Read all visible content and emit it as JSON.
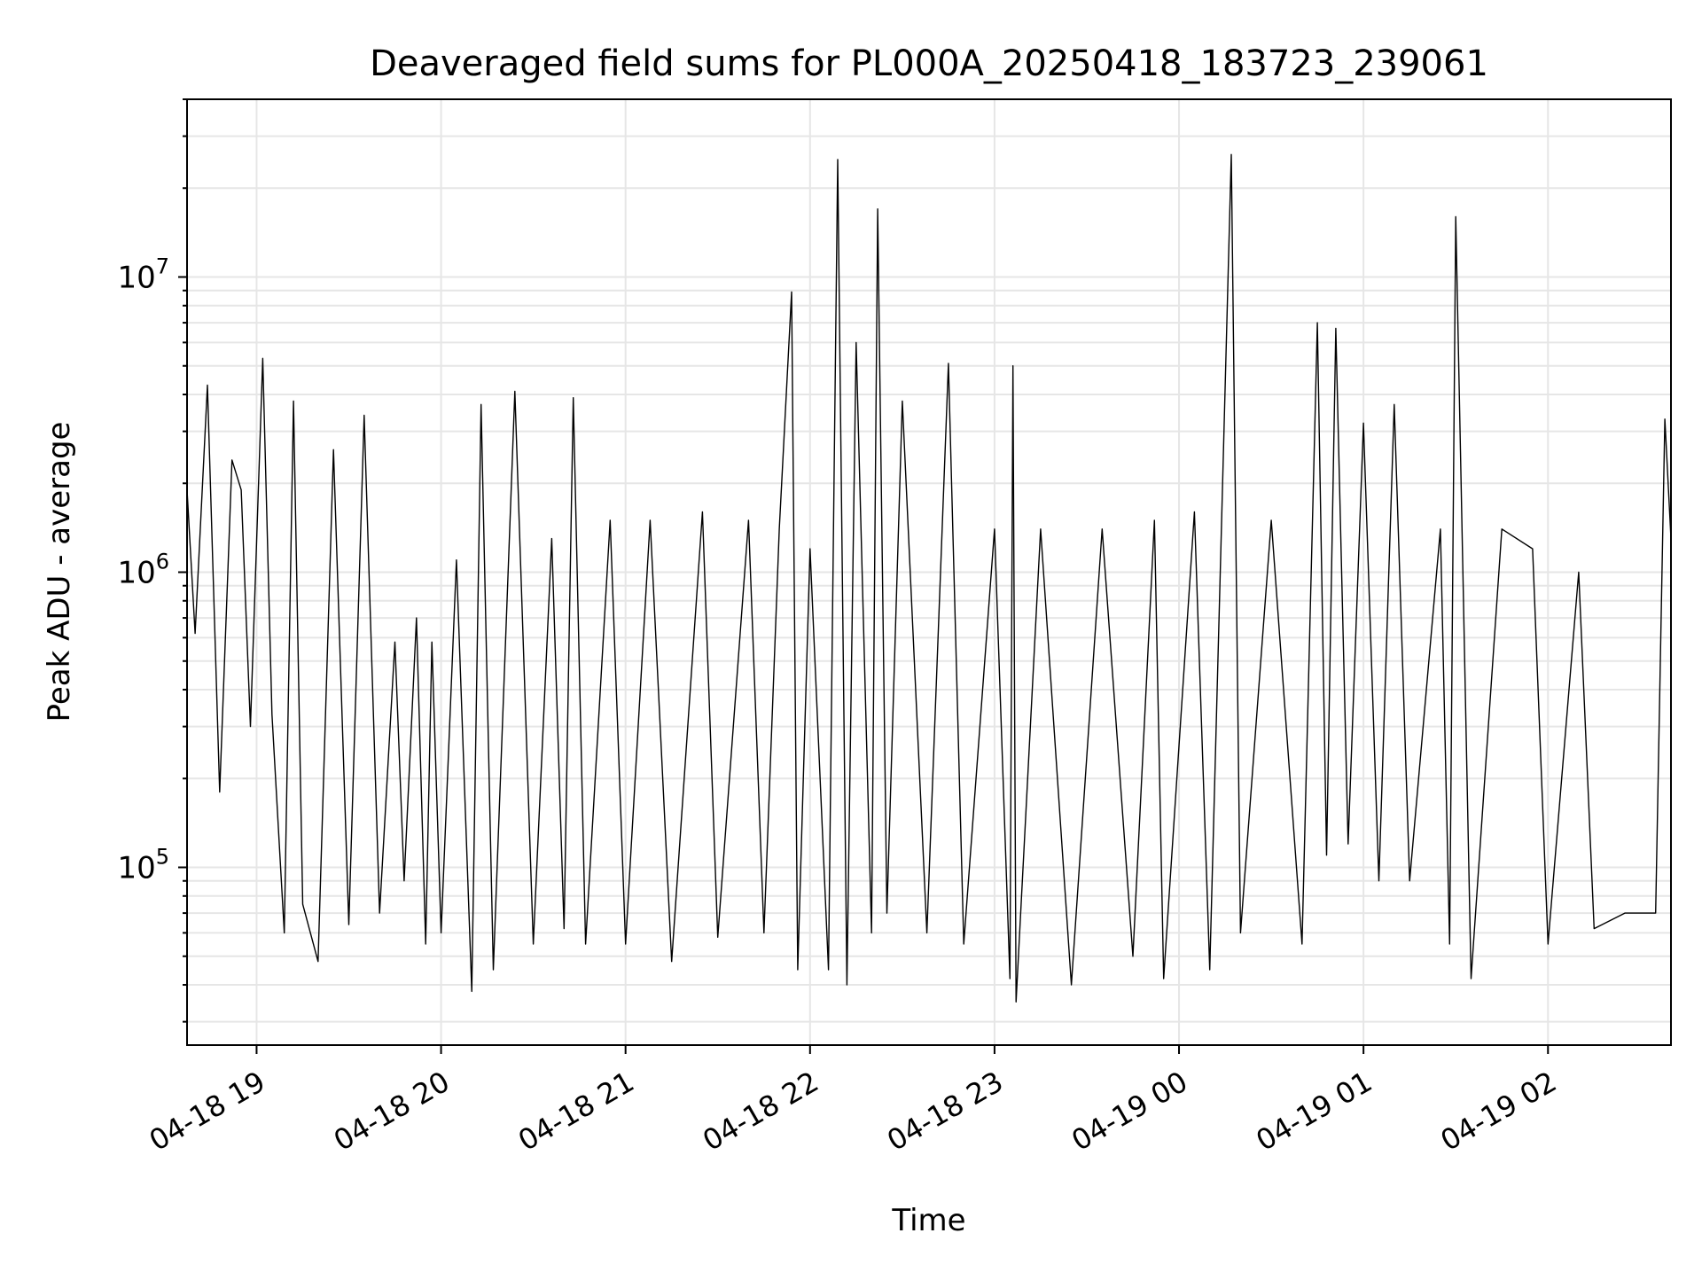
{
  "chart_data": {
    "type": "line",
    "title": "Deaveraged field sums for PL000A_20250418_183723_239061",
    "xlabel": "Time",
    "ylabel": "Peak ADU - average",
    "xscale": "time",
    "yscale": "log",
    "xlim": [
      "2025-04-18T18:37:23",
      "2025-04-19T02:40:00"
    ],
    "ylim": [
      25000,
      40000000
    ],
    "grid": true,
    "legend": "none",
    "x_ticks": [
      {
        "value": "2025-04-18T19:00:00",
        "label": "04-18 19"
      },
      {
        "value": "2025-04-18T20:00:00",
        "label": "04-18 20"
      },
      {
        "value": "2025-04-18T21:00:00",
        "label": "04-18 21"
      },
      {
        "value": "2025-04-18T22:00:00",
        "label": "04-18 22"
      },
      {
        "value": "2025-04-18T23:00:00",
        "label": "04-18 23"
      },
      {
        "value": "2025-04-19T00:00:00",
        "label": "04-19 00"
      },
      {
        "value": "2025-04-19T01:00:00",
        "label": "04-19 01"
      },
      {
        "value": "2025-04-19T02:00:00",
        "label": "04-19 02"
      }
    ],
    "y_ticks": [
      {
        "value": 100000,
        "base": "10",
        "exp": "5"
      },
      {
        "value": 1000000,
        "base": "10",
        "exp": "6"
      },
      {
        "value": 10000000,
        "base": "10",
        "exp": "7"
      }
    ],
    "colors": {
      "line": "#000000",
      "grid": "#e6e6e6",
      "axes": "#000000"
    },
    "series": [
      {
        "values": [
          [
            "2025-04-18T18:37:23",
            1900000
          ],
          [
            "2025-04-18T18:40:00",
            620000
          ],
          [
            "2025-04-18T18:44:00",
            4300000
          ],
          [
            "2025-04-18T18:48:00",
            180000
          ],
          [
            "2025-04-18T18:52:00",
            2400000
          ],
          [
            "2025-04-18T18:55:00",
            1900000
          ],
          [
            "2025-04-18T18:58:00",
            300000
          ],
          [
            "2025-04-18T19:02:00",
            5300000
          ],
          [
            "2025-04-18T19:05:00",
            330000
          ],
          [
            "2025-04-18T19:09:00",
            60000
          ],
          [
            "2025-04-18T19:12:00",
            3800000
          ],
          [
            "2025-04-18T19:15:00",
            75000
          ],
          [
            "2025-04-18T19:20:00",
            48000
          ],
          [
            "2025-04-18T19:25:00",
            2600000
          ],
          [
            "2025-04-18T19:30:00",
            64000
          ],
          [
            "2025-04-18T19:35:00",
            3400000
          ],
          [
            "2025-04-18T19:40:00",
            70000
          ],
          [
            "2025-04-18T19:45:00",
            580000
          ],
          [
            "2025-04-18T19:48:00",
            90000
          ],
          [
            "2025-04-18T19:52:00",
            700000
          ],
          [
            "2025-04-18T19:55:00",
            55000
          ],
          [
            "2025-04-18T19:57:00",
            580000
          ],
          [
            "2025-04-18T20:00:00",
            60000
          ],
          [
            "2025-04-18T20:05:00",
            1100000
          ],
          [
            "2025-04-18T20:10:00",
            38000
          ],
          [
            "2025-04-18T20:13:00",
            3700000
          ],
          [
            "2025-04-18T20:17:00",
            45000
          ],
          [
            "2025-04-18T20:24:00",
            4100000
          ],
          [
            "2025-04-18T20:30:00",
            55000
          ],
          [
            "2025-04-18T20:36:00",
            1300000
          ],
          [
            "2025-04-18T20:40:00",
            62000
          ],
          [
            "2025-04-18T20:43:00",
            3900000
          ],
          [
            "2025-04-18T20:47:00",
            55000
          ],
          [
            "2025-04-18T20:55:00",
            1500000
          ],
          [
            "2025-04-18T21:00:00",
            55000
          ],
          [
            "2025-04-18T21:08:00",
            1500000
          ],
          [
            "2025-04-18T21:15:00",
            48000
          ],
          [
            "2025-04-18T21:25:00",
            1600000
          ],
          [
            "2025-04-18T21:30:00",
            58000
          ],
          [
            "2025-04-18T21:40:00",
            1500000
          ],
          [
            "2025-04-18T21:45:00",
            60000
          ],
          [
            "2025-04-18T21:50:00",
            1400000
          ],
          [
            "2025-04-18T21:54:00",
            8900000
          ],
          [
            "2025-04-18T21:56:00",
            45000
          ],
          [
            "2025-04-18T22:00:00",
            1200000
          ],
          [
            "2025-04-18T22:06:00",
            45000
          ],
          [
            "2025-04-18T22:09:00",
            25000000
          ],
          [
            "2025-04-18T22:12:00",
            40000
          ],
          [
            "2025-04-18T22:15:00",
            6000000
          ],
          [
            "2025-04-18T22:20:00",
            60000
          ],
          [
            "2025-04-18T22:22:00",
            17000000
          ],
          [
            "2025-04-18T22:25:00",
            70000
          ],
          [
            "2025-04-18T22:30:00",
            3800000
          ],
          [
            "2025-04-18T22:38:00",
            60000
          ],
          [
            "2025-04-18T22:45:00",
            5100000
          ],
          [
            "2025-04-18T22:50:00",
            55000
          ],
          [
            "2025-04-18T23:00:00",
            1400000
          ],
          [
            "2025-04-18T23:05:00",
            42000
          ],
          [
            "2025-04-18T23:06:00",
            5000000
          ],
          [
            "2025-04-18T23:07:00",
            35000
          ],
          [
            "2025-04-18T23:15:00",
            1400000
          ],
          [
            "2025-04-18T23:25:00",
            40000
          ],
          [
            "2025-04-18T23:35:00",
            1400000
          ],
          [
            "2025-04-18T23:45:00",
            50000
          ],
          [
            "2025-04-18T23:52:00",
            1500000
          ],
          [
            "2025-04-18T23:55:00",
            42000
          ],
          [
            "2025-04-19T00:05:00",
            1600000
          ],
          [
            "2025-04-19T00:10:00",
            45000
          ],
          [
            "2025-04-19T00:17:00",
            26000000
          ],
          [
            "2025-04-19T00:20:00",
            60000
          ],
          [
            "2025-04-19T00:30:00",
            1500000
          ],
          [
            "2025-04-19T00:40:00",
            55000
          ],
          [
            "2025-04-19T00:45:00",
            7000000
          ],
          [
            "2025-04-19T00:48:00",
            110000
          ],
          [
            "2025-04-19T00:51:00",
            6700000
          ],
          [
            "2025-04-19T00:55:00",
            120000
          ],
          [
            "2025-04-19T01:00:00",
            3200000
          ],
          [
            "2025-04-19T01:05:00",
            90000
          ],
          [
            "2025-04-19T01:10:00",
            3700000
          ],
          [
            "2025-04-19T01:15:00",
            90000
          ],
          [
            "2025-04-19T01:25:00",
            1400000
          ],
          [
            "2025-04-19T01:28:00",
            55000
          ],
          [
            "2025-04-19T01:30:00",
            16000000
          ],
          [
            "2025-04-19T01:35:00",
            42000
          ],
          [
            "2025-04-19T01:45:00",
            1400000
          ],
          [
            "2025-04-19T01:55:00",
            1200000
          ],
          [
            "2025-04-19T02:00:00",
            55000
          ],
          [
            "2025-04-19T02:10:00",
            1000000
          ],
          [
            "2025-04-19T02:15:00",
            62000
          ],
          [
            "2025-04-19T02:25:00",
            70000
          ],
          [
            "2025-04-19T02:35:00",
            70000
          ],
          [
            "2025-04-19T02:38:00",
            3300000
          ],
          [
            "2025-04-19T02:40:00",
            1300000
          ]
        ]
      }
    ]
  }
}
